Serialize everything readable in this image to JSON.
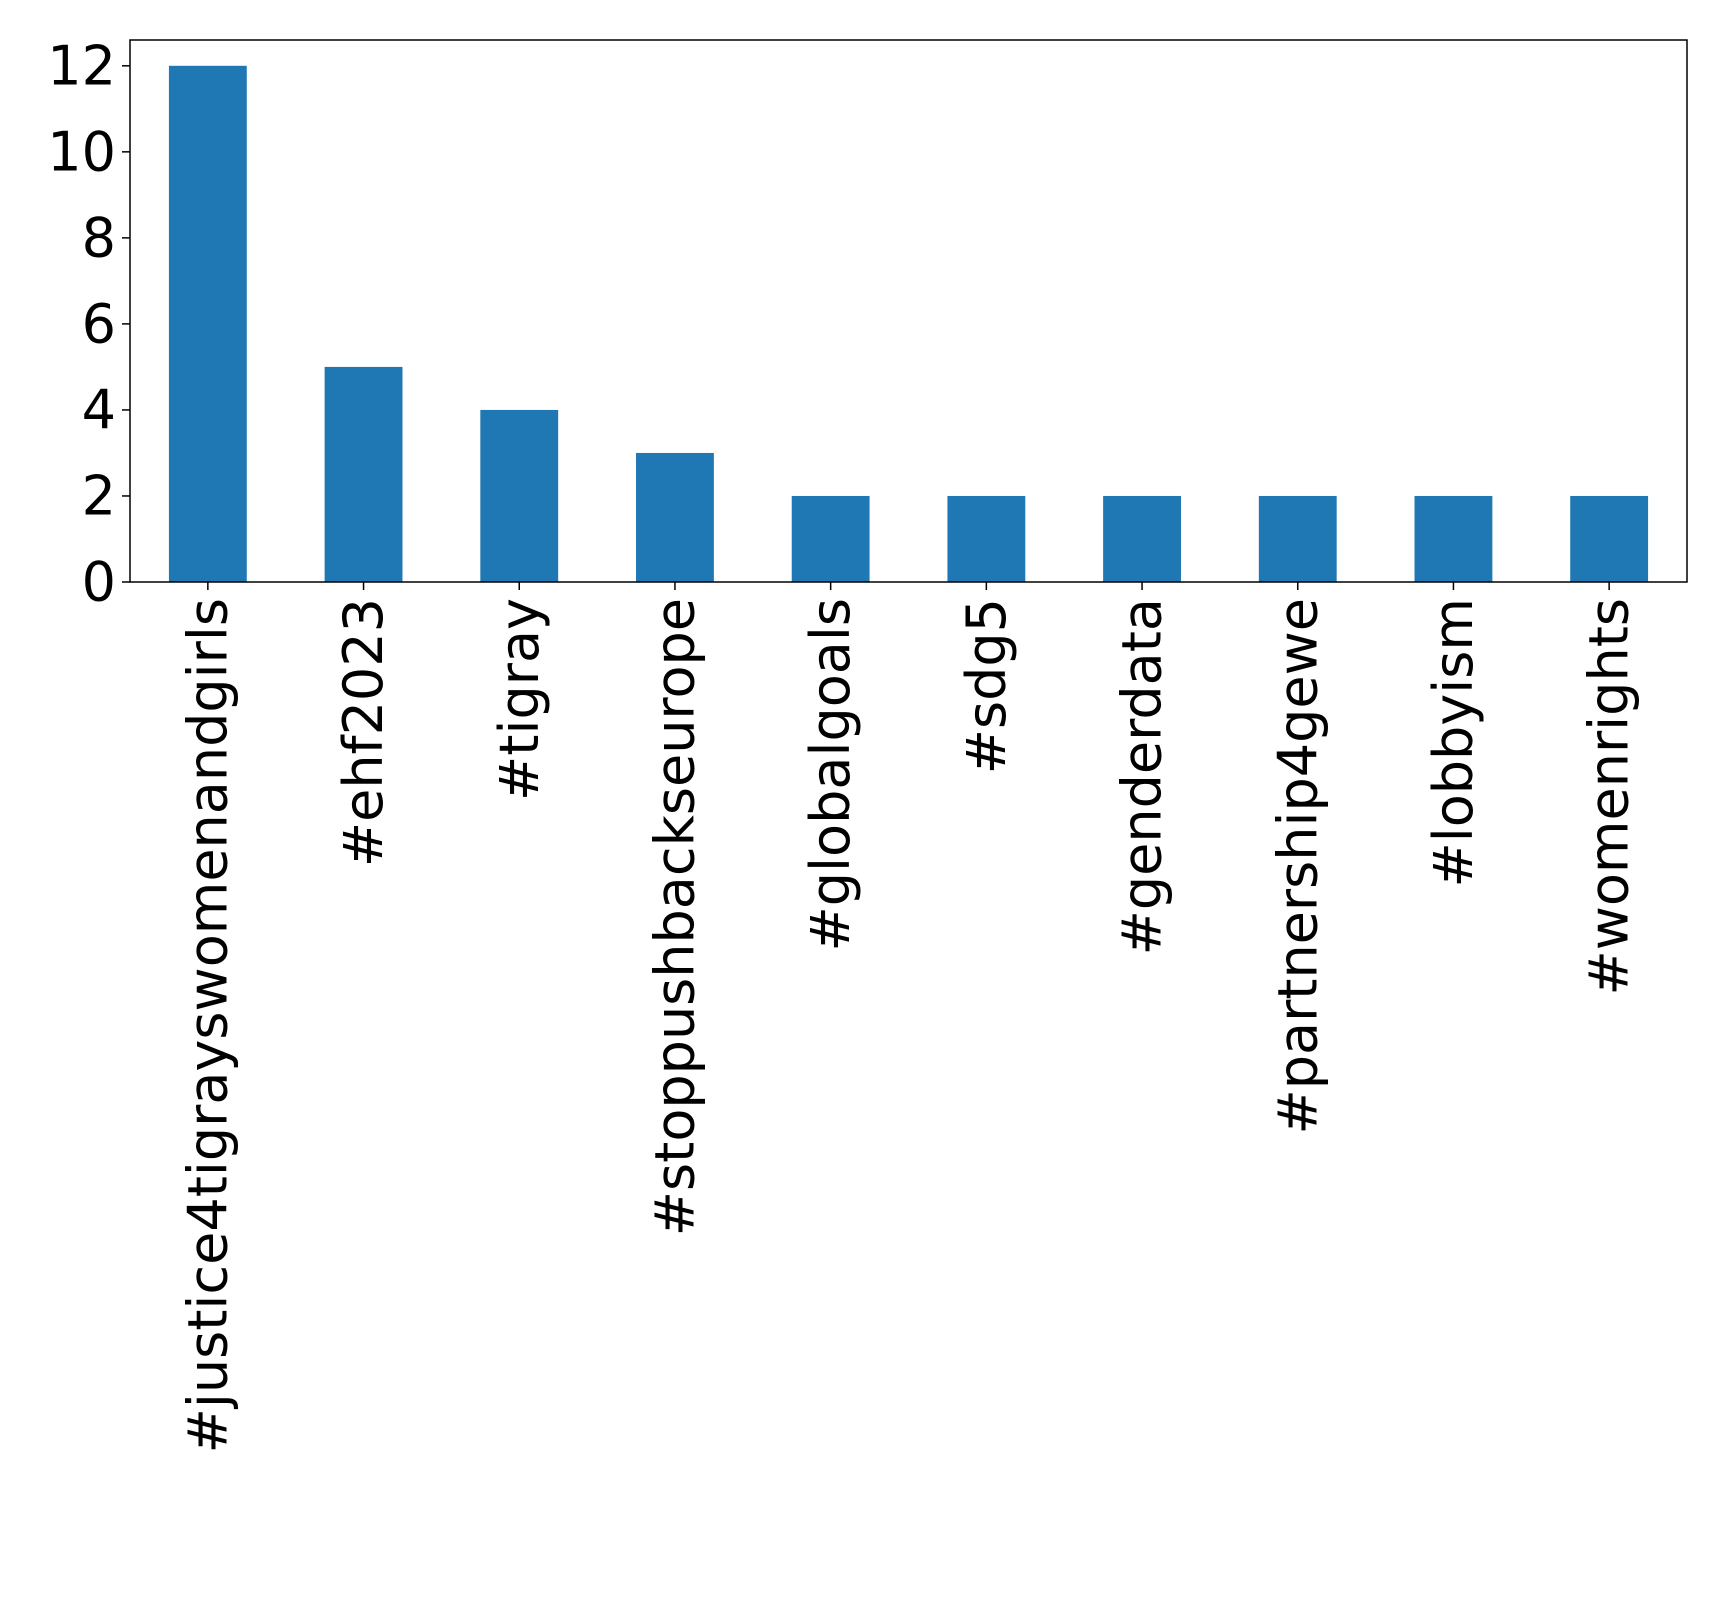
{
  "chart_data": {
    "type": "bar",
    "title": "",
    "xlabel": "",
    "ylabel": "",
    "categories": [
      "#justice4tigrayswomenandgirls",
      "#ehf2023",
      "#tigray",
      "#stoppushbackseurope",
      "#globalgoals",
      "#sdg5",
      "#genderdata",
      "#partnership4gewe",
      "#lobbyism",
      "#womenrights"
    ],
    "values": [
      12,
      5,
      4,
      3,
      2,
      2,
      2,
      2,
      2,
      2
    ],
    "ylim": [
      0,
      12.6
    ],
    "yticks": [
      0,
      2,
      4,
      6,
      8,
      10,
      12
    ],
    "grid": false,
    "legend": "none",
    "bar_color": "#1f77b4"
  }
}
